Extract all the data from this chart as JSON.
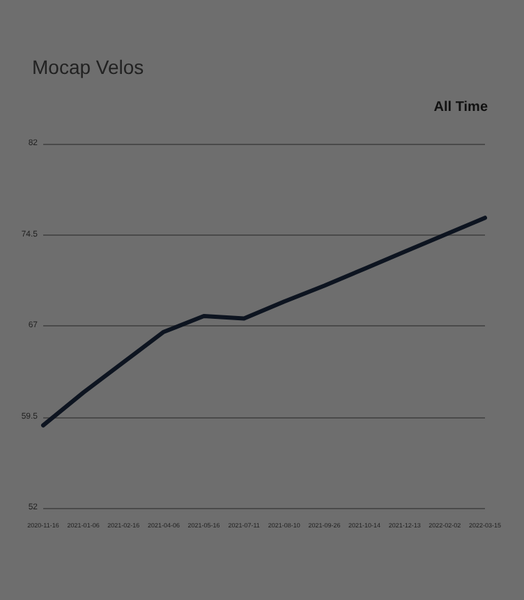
{
  "chart_data": {
    "type": "line",
    "title": "Mocap Velos",
    "annotations": [
      "All Time"
    ],
    "categories": [
      "2020-11-16",
      "2021-01-06",
      "2021-02-16",
      "2021-04-06",
      "2021-05-16",
      "2021-07-11",
      "2021-08-10",
      "2021-09-26",
      "2021-10-14",
      "2021-12-13",
      "2022-02-02",
      "2022-03-15"
    ],
    "series": [
      {
        "color": "#0d1420",
        "values": [
          58.8,
          61.5,
          64.0,
          66.5,
          67.8,
          67.6,
          69.0,
          70.3,
          71.7,
          73.1,
          74.5,
          75.9
        ]
      }
    ],
    "ylim": [
      52,
      82
    ],
    "yticks": [
      52,
      59.5,
      67,
      74.5,
      82
    ],
    "grid": "y",
    "marker": "none",
    "line_style": "solid"
  }
}
